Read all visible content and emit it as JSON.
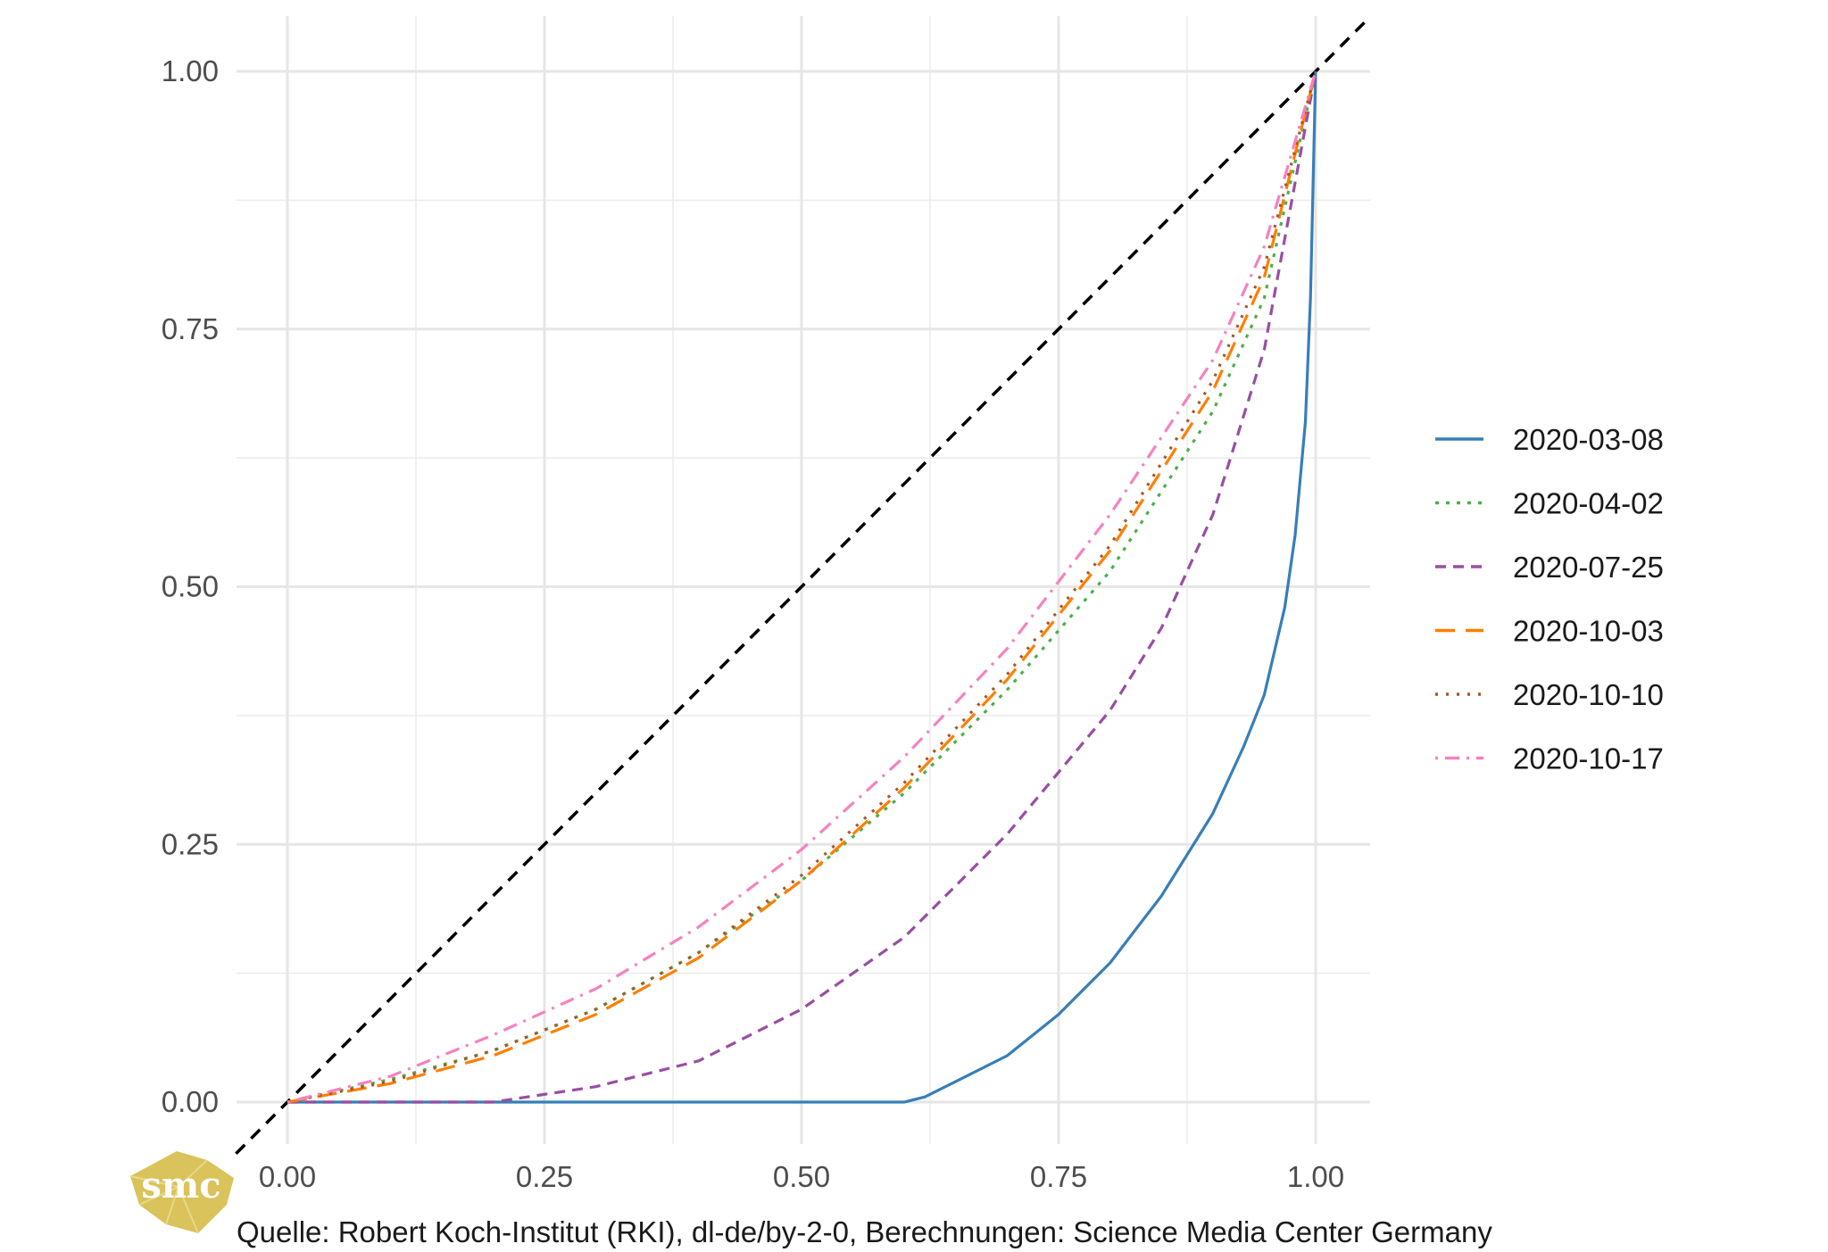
{
  "chart_data": {
    "type": "line",
    "title": "",
    "xlabel": "",
    "ylabel": "",
    "xlim": [
      -0.05,
      1.05
    ],
    "ylim": [
      -0.04,
      1.03
    ],
    "x_ticks": [
      "0.00",
      "0.25",
      "0.50",
      "0.75",
      "1.00"
    ],
    "y_ticks": [
      "0.00",
      "0.25",
      "0.50",
      "0.75",
      "1.00"
    ],
    "grid": true,
    "legend_position": "right",
    "reference_line": {
      "from": [
        0,
        0
      ],
      "to": [
        1,
        1
      ],
      "style": "dashed",
      "color": "#000000"
    },
    "series": [
      {
        "name": "2020-03-08",
        "color": "#377EB8",
        "dash": "solid",
        "x": [
          0,
          0.2,
          0.4,
          0.6,
          0.62,
          0.65,
          0.7,
          0.75,
          0.8,
          0.85,
          0.9,
          0.93,
          0.95,
          0.97,
          0.98,
          0.99,
          0.995,
          1.0
        ],
        "y": [
          0,
          0,
          0,
          0,
          0.005,
          0.02,
          0.045,
          0.085,
          0.135,
          0.2,
          0.28,
          0.345,
          0.395,
          0.48,
          0.55,
          0.66,
          0.78,
          1.0
        ]
      },
      {
        "name": "2020-04-02",
        "color": "#4DAF4A",
        "dash": "dotted",
        "x": [
          0,
          0.1,
          0.2,
          0.3,
          0.4,
          0.5,
          0.6,
          0.7,
          0.8,
          0.9,
          0.95,
          1.0
        ],
        "y": [
          0,
          0.022,
          0.05,
          0.09,
          0.145,
          0.215,
          0.3,
          0.4,
          0.515,
          0.67,
          0.78,
          1.0
        ]
      },
      {
        "name": "2020-07-25",
        "color": "#984EA3",
        "dash": "dashed",
        "x": [
          0,
          0.1,
          0.2,
          0.3,
          0.4,
          0.5,
          0.6,
          0.7,
          0.8,
          0.85,
          0.9,
          0.95,
          1.0
        ],
        "y": [
          0,
          0,
          0,
          0.015,
          0.04,
          0.09,
          0.16,
          0.26,
          0.38,
          0.46,
          0.57,
          0.73,
          1.0
        ]
      },
      {
        "name": "2020-10-03",
        "color": "#FF7F00",
        "dash": "longdash",
        "x": [
          0,
          0.1,
          0.2,
          0.3,
          0.4,
          0.5,
          0.6,
          0.7,
          0.8,
          0.9,
          0.95,
          1.0
        ],
        "y": [
          0,
          0.018,
          0.045,
          0.085,
          0.14,
          0.215,
          0.305,
          0.41,
          0.535,
          0.69,
          0.8,
          1.0
        ]
      },
      {
        "name": "2020-10-10",
        "color": "#A65628",
        "dash": "dotted-fine",
        "x": [
          0,
          0.1,
          0.2,
          0.3,
          0.4,
          0.5,
          0.6,
          0.7,
          0.8,
          0.9,
          0.95,
          1.0
        ],
        "y": [
          0,
          0.02,
          0.05,
          0.09,
          0.145,
          0.22,
          0.31,
          0.415,
          0.54,
          0.7,
          0.81,
          1.0
        ]
      },
      {
        "name": "2020-10-17",
        "color": "#F781BF",
        "dash": "dotdash",
        "x": [
          0,
          0.1,
          0.2,
          0.3,
          0.4,
          0.5,
          0.6,
          0.7,
          0.8,
          0.9,
          0.95,
          1.0
        ],
        "y": [
          0,
          0.025,
          0.065,
          0.11,
          0.17,
          0.245,
          0.335,
          0.44,
          0.57,
          0.72,
          0.83,
          1.0
        ]
      }
    ]
  },
  "caption": "Quelle: Robert Koch-Institut (RKI), dl-de/by-2-0, Berechnungen: Science Media Center Germany",
  "logo": {
    "text": "smc",
    "color": "#D9C35A"
  }
}
